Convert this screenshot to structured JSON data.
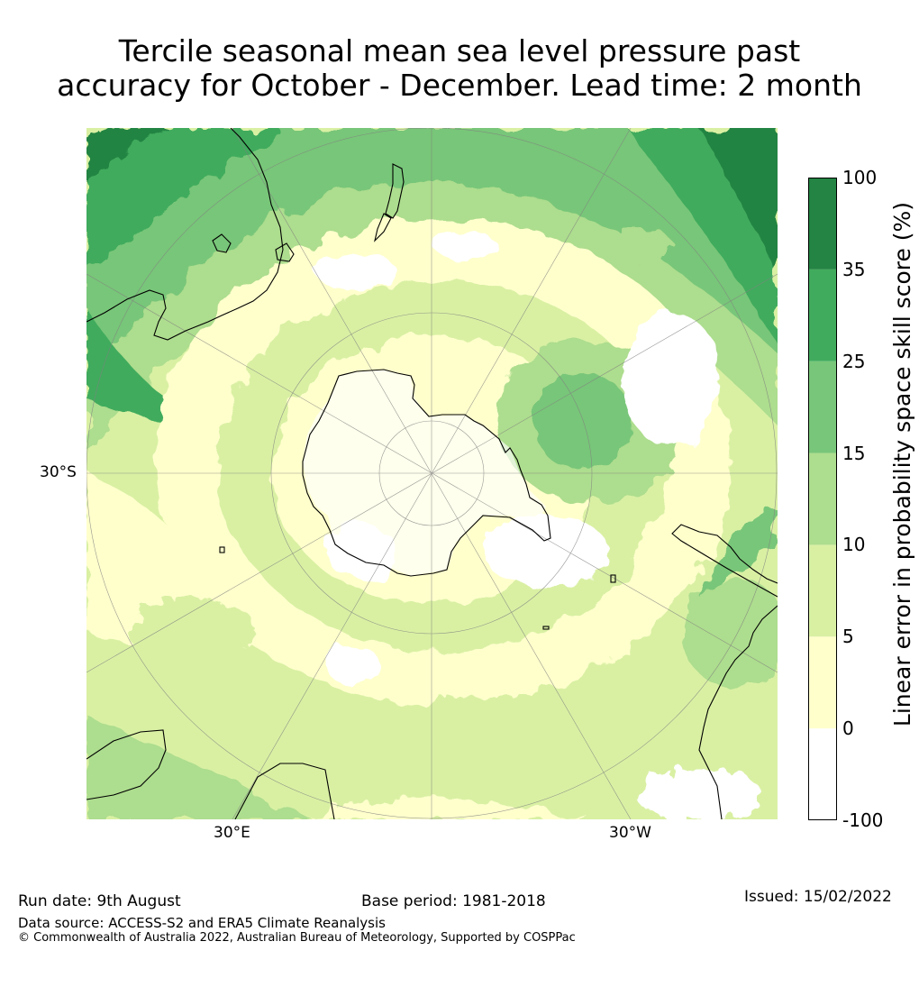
{
  "title": {
    "line1": "Tercile seasonal mean sea level pressure past",
    "line2": "accuracy for October - December. Lead time: 2 month"
  },
  "map": {
    "projection": "south-polar-stereographic",
    "lat_label": "30°S",
    "lon_labels": [
      "30°E",
      "30°W"
    ],
    "legend_placement": "right"
  },
  "colorbar": {
    "label": "Linear error in probability space skill score (%)",
    "ticks": [
      "100",
      "35",
      "25",
      "15",
      "10",
      "5",
      "0",
      "-100"
    ],
    "bins": [
      {
        "from": "-100",
        "to": "0",
        "color": "#ffffff"
      },
      {
        "from": "0",
        "to": "5",
        "color": "#ffffcc"
      },
      {
        "from": "5",
        "to": "10",
        "color": "#d9f0a3"
      },
      {
        "from": "10",
        "to": "15",
        "color": "#addd8e"
      },
      {
        "from": "15",
        "to": "25",
        "color": "#78c679"
      },
      {
        "from": "25",
        "to": "35",
        "color": "#41ab5d"
      },
      {
        "from": "35",
        "to": "100",
        "color": "#238443"
      }
    ]
  },
  "footer": {
    "run_date": "Run date: 9th August",
    "base_period": "Base period: 1981-2018",
    "issued": "Issued: 15/02/2022",
    "data_source": "Data source: ACCESS-S2 and ERA5 Climate Reanalysis",
    "copyright": "© Commonwealth of Australia 2022, Australian Bureau of Meteorology, Supported by COSPPac"
  }
}
